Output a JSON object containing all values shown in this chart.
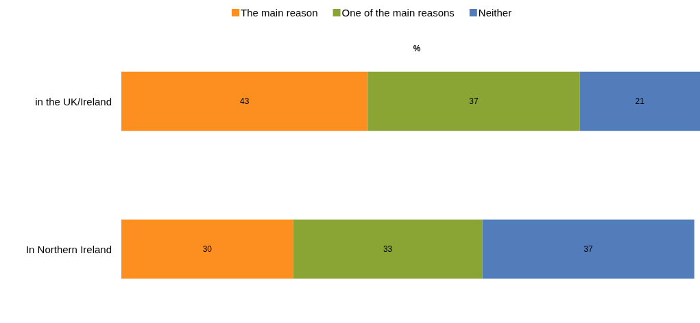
{
  "chart_data": {
    "type": "bar",
    "orientation": "horizontal",
    "stacked": true,
    "title": "%",
    "categories": [
      "in the UK/Ireland",
      "In Northern Ireland"
    ],
    "series": [
      {
        "name": "The main reason",
        "color": "#fc8f1f",
        "values": [
          43,
          30
        ]
      },
      {
        "name": "One of the main reasons",
        "color": "#8aa533",
        "values": [
          37,
          33
        ]
      },
      {
        "name": "Neither",
        "color": "#527dba",
        "values": [
          21,
          37
        ]
      }
    ],
    "xlim": [
      0,
      101
    ],
    "data_labels": true,
    "legend": "top"
  }
}
